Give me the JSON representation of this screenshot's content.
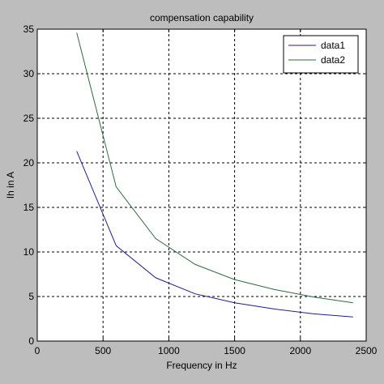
{
  "chart_data": {
    "type": "line",
    "title": "compensation capability",
    "xlabel": "Frequency in Hz",
    "ylabel": "Ih in A",
    "xlim": [
      0,
      2500
    ],
    "ylim": [
      0,
      35
    ],
    "xticks": [
      0,
      500,
      1000,
      1500,
      2000,
      2500
    ],
    "yticks": [
      0,
      5,
      10,
      15,
      20,
      25,
      30,
      35
    ],
    "grid": true,
    "grid_style": "dashed",
    "legend_position": "top-right",
    "series": [
      {
        "name": "data1",
        "color": "#1f1f8c",
        "x": [
          300,
          600,
          900,
          1200,
          1500,
          1800,
          2100,
          2400
        ],
        "y": [
          21.3,
          10.7,
          7.1,
          5.3,
          4.3,
          3.6,
          3.05,
          2.7
        ]
      },
      {
        "name": "data2",
        "color": "#2e6b3f",
        "x": [
          300,
          600,
          900,
          1200,
          1500,
          1800,
          2100,
          2400
        ],
        "y": [
          34.6,
          17.3,
          11.5,
          8.6,
          6.9,
          5.8,
          4.95,
          4.3
        ]
      }
    ]
  }
}
